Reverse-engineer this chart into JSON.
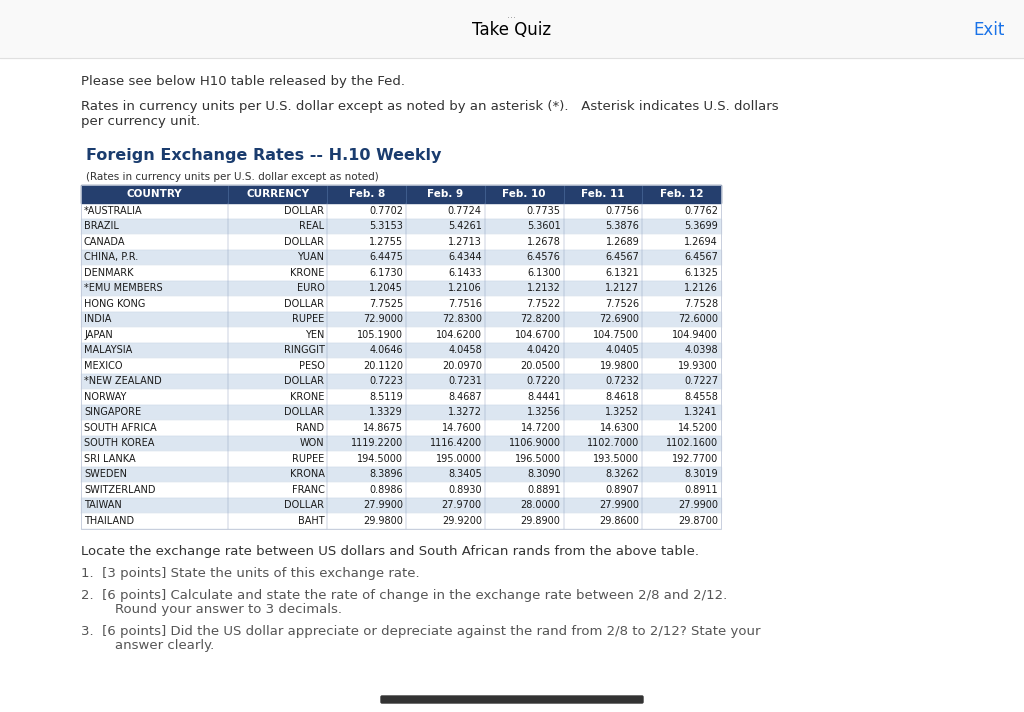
{
  "page_title": "Take Quiz",
  "page_title_color": "#000000",
  "exit_text": "Exit",
  "exit_color": "#1a73e8",
  "bg_color": "#ffffff",
  "intro_text1": "Please see below H10 table released by the Fed.",
  "intro_text2": "Rates in currency units per U.S. dollar except as noted by an asterisk (*).   Asterisk indicates U.S. dollars\nper currency unit.",
  "table_title": "Foreign Exchange Rates -- H.10 Weekly",
  "table_title_color": "#1a3c6e",
  "table_subtitle": "(Rates in currency units per U.S. dollar except as noted)",
  "header_bg": "#253f6e",
  "header_fg": "#ffffff",
  "row_alt_bg": "#dce6f1",
  "row_bg": "#ffffff",
  "columns": [
    "COUNTRY",
    "CURRENCY",
    "Feb. 8",
    "Feb. 9",
    "Feb. 10",
    "Feb. 11",
    "Feb. 12"
  ],
  "rows": [
    [
      "*AUSTRALIA",
      "DOLLAR",
      "0.7702",
      "0.7724",
      "0.7735",
      "0.7756",
      "0.7762"
    ],
    [
      "BRAZIL",
      "REAL",
      "5.3153",
      "5.4261",
      "5.3601",
      "5.3876",
      "5.3699"
    ],
    [
      "CANADA",
      "DOLLAR",
      "1.2755",
      "1.2713",
      "1.2678",
      "1.2689",
      "1.2694"
    ],
    [
      "CHINA, P.R.",
      "YUAN",
      "6.4475",
      "6.4344",
      "6.4576",
      "6.4567",
      "6.4567"
    ],
    [
      "DENMARK",
      "KRONE",
      "6.1730",
      "6.1433",
      "6.1300",
      "6.1321",
      "6.1325"
    ],
    [
      "*EMU MEMBERS",
      "EURO",
      "1.2045",
      "1.2106",
      "1.2132",
      "1.2127",
      "1.2126"
    ],
    [
      "HONG KONG",
      "DOLLAR",
      "7.7525",
      "7.7516",
      "7.7522",
      "7.7526",
      "7.7528"
    ],
    [
      "INDIA",
      "RUPEE",
      "72.9000",
      "72.8300",
      "72.8200",
      "72.6900",
      "72.6000"
    ],
    [
      "JAPAN",
      "YEN",
      "105.1900",
      "104.6200",
      "104.6700",
      "104.7500",
      "104.9400"
    ],
    [
      "MALAYSIA",
      "RINGGIT",
      "4.0646",
      "4.0458",
      "4.0420",
      "4.0405",
      "4.0398"
    ],
    [
      "MEXICO",
      "PESO",
      "20.1120",
      "20.0970",
      "20.0500",
      "19.9800",
      "19.9300"
    ],
    [
      "*NEW ZEALAND",
      "DOLLAR",
      "0.7223",
      "0.7231",
      "0.7220",
      "0.7232",
      "0.7227"
    ],
    [
      "NORWAY",
      "KRONE",
      "8.5119",
      "8.4687",
      "8.4441",
      "8.4618",
      "8.4558"
    ],
    [
      "SINGAPORE",
      "DOLLAR",
      "1.3329",
      "1.3272",
      "1.3256",
      "1.3252",
      "1.3241"
    ],
    [
      "SOUTH AFRICA",
      "RAND",
      "14.8675",
      "14.7600",
      "14.7200",
      "14.6300",
      "14.5200"
    ],
    [
      "SOUTH KOREA",
      "WON",
      "1119.2200",
      "1116.4200",
      "1106.9000",
      "1102.7000",
      "1102.1600"
    ],
    [
      "SRI LANKA",
      "RUPEE",
      "194.5000",
      "195.0000",
      "196.5000",
      "193.5000",
      "192.7700"
    ],
    [
      "SWEDEN",
      "KRONA",
      "8.3896",
      "8.3405",
      "8.3090",
      "8.3262",
      "8.3019"
    ],
    [
      "SWITZERLAND",
      "FRANC",
      "0.8986",
      "0.8930",
      "0.8891",
      "0.8907",
      "0.8911"
    ],
    [
      "TAIWAN",
      "DOLLAR",
      "27.9900",
      "27.9700",
      "28.0000",
      "27.9900",
      "27.9900"
    ],
    [
      "THAILAND",
      "BAHT",
      "29.9800",
      "29.9200",
      "29.8900",
      "29.8600",
      "29.8700"
    ]
  ],
  "footer_text1": "Locate the exchange rate between US dollars and South African rands from the above table.",
  "footer_q1": "1.  [3 points] State the units of this exchange rate.",
  "footer_q2": "2.  [6 points] Calculate and state the rate of change in the exchange rate between 2/8 and 2/12.\n        Round your answer to 3 decimals.",
  "footer_q3": "3.  [6 points] Did the US dollar appreciate or depreciate against the rand from 2/8 to 2/12? State your\n        answer clearly.",
  "text_color": "#333333",
  "light_text_color": "#555555",
  "border_color": "#c0c8d8",
  "col_divider_color": "#8899bb",
  "row_divider_color": "#c8d4e4"
}
